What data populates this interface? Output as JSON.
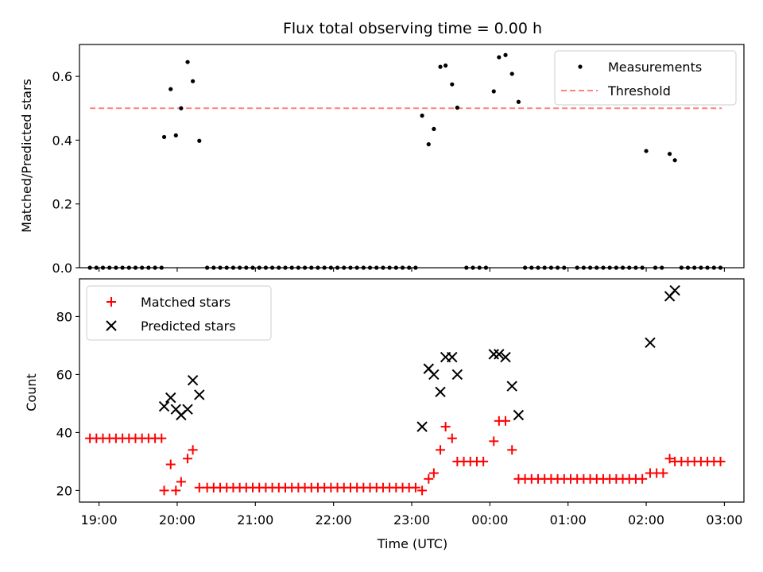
{
  "chart_data": [
    {
      "type": "scatter",
      "title": "Flux total observing time = 0.00 h",
      "xlabel": "",
      "ylabel": "Matched/Predicted stars",
      "ylim": [
        0,
        0.7
      ],
      "yticks": [
        "0.0",
        "0.2",
        "0.4",
        "0.6"
      ],
      "xlim": [
        "18:45",
        "03:15"
      ],
      "grid": false,
      "legend_position": "top-right",
      "series": [
        {
          "name": "Measurements",
          "marker": "dot",
          "color": "#000000",
          "points": [
            [
              "18:53",
              0
            ],
            [
              "18:58",
              0
            ],
            [
              "19:03",
              0
            ],
            [
              "19:08",
              0
            ],
            [
              "19:13",
              0
            ],
            [
              "19:18",
              0
            ],
            [
              "19:23",
              0
            ],
            [
              "19:28",
              0
            ],
            [
              "19:33",
              0
            ],
            [
              "19:38",
              0
            ],
            [
              "19:43",
              0
            ],
            [
              "19:48",
              0
            ],
            [
              "19:50",
              0.41
            ],
            [
              "19:55",
              0.56
            ],
            [
              "19:59",
              0.415
            ],
            [
              "20:03",
              0.5
            ],
            [
              "20:08",
              0.645
            ],
            [
              "20:12",
              0.585
            ],
            [
              "20:17",
              0.398
            ],
            [
              "20:23",
              0
            ],
            [
              "20:28",
              0
            ],
            [
              "20:33",
              0
            ],
            [
              "20:38",
              0
            ],
            [
              "20:43",
              0
            ],
            [
              "20:48",
              0
            ],
            [
              "20:53",
              0
            ],
            [
              "20:58",
              0
            ],
            [
              "21:03",
              0
            ],
            [
              "21:08",
              0
            ],
            [
              "21:13",
              0
            ],
            [
              "21:18",
              0
            ],
            [
              "21:23",
              0
            ],
            [
              "21:28",
              0
            ],
            [
              "21:33",
              0
            ],
            [
              "21:38",
              0
            ],
            [
              "21:43",
              0
            ],
            [
              "21:48",
              0
            ],
            [
              "21:53",
              0
            ],
            [
              "21:58",
              0
            ],
            [
              "22:03",
              0
            ],
            [
              "22:08",
              0
            ],
            [
              "22:13",
              0
            ],
            [
              "22:18",
              0
            ],
            [
              "22:23",
              0
            ],
            [
              "22:28",
              0
            ],
            [
              "22:33",
              0
            ],
            [
              "22:38",
              0
            ],
            [
              "22:43",
              0
            ],
            [
              "22:48",
              0
            ],
            [
              "22:53",
              0
            ],
            [
              "22:58",
              0
            ],
            [
              "23:03",
              0
            ],
            [
              "23:08",
              0.477
            ],
            [
              "23:13",
              0.387
            ],
            [
              "23:17",
              0.435
            ],
            [
              "23:22",
              0.63
            ],
            [
              "23:26",
              0.634
            ],
            [
              "23:31",
              0.575
            ],
            [
              "23:35",
              0.502
            ],
            [
              "23:42",
              0
            ],
            [
              "23:47",
              0
            ],
            [
              "23:52",
              0
            ],
            [
              "23:57",
              0
            ],
            [
              "00:03",
              0.553
            ],
            [
              "00:07",
              0.66
            ],
            [
              "00:12",
              0.667
            ],
            [
              "00:17",
              0.608
            ],
            [
              "00:22",
              0.52
            ],
            [
              "00:27",
              0
            ],
            [
              "00:32",
              0
            ],
            [
              "00:37",
              0
            ],
            [
              "00:42",
              0
            ],
            [
              "00:47",
              0
            ],
            [
              "00:52",
              0
            ],
            [
              "00:57",
              0
            ],
            [
              "01:07",
              0
            ],
            [
              "01:12",
              0
            ],
            [
              "01:17",
              0
            ],
            [
              "01:22",
              0
            ],
            [
              "01:27",
              0
            ],
            [
              "01:32",
              0
            ],
            [
              "01:37",
              0
            ],
            [
              "01:42",
              0
            ],
            [
              "01:47",
              0
            ],
            [
              "01:52",
              0
            ],
            [
              "01:57",
              0
            ],
            [
              "02:07",
              0
            ],
            [
              "02:12",
              0
            ],
            [
              "02:00",
              0.366
            ],
            [
              "02:18",
              0.357
            ],
            [
              "02:22",
              0.337
            ],
            [
              "02:27",
              0
            ],
            [
              "02:32",
              0
            ],
            [
              "02:37",
              0
            ],
            [
              "02:42",
              0
            ],
            [
              "02:47",
              0
            ],
            [
              "02:52",
              0
            ],
            [
              "02:57",
              0
            ]
          ]
        },
        {
          "name": "Threshold",
          "marker": "dashed-line",
          "color": "#ff8080",
          "points": [
            [
              "18:53",
              0.5
            ],
            [
              "02:58",
              0.5
            ]
          ]
        }
      ]
    },
    {
      "type": "scatter",
      "title": "",
      "xlabel": "Time (UTC)",
      "ylabel": "Count",
      "ylim": [
        16,
        93
      ],
      "yticks": [
        "20",
        "40",
        "60",
        "80"
      ],
      "xticks": [
        "19:00",
        "20:00",
        "21:00",
        "22:00",
        "23:00",
        "00:00",
        "01:00",
        "02:00",
        "03:00"
      ],
      "xlim": [
        "18:45",
        "03:15"
      ],
      "grid": false,
      "legend_position": "top-left",
      "series": [
        {
          "name": "Matched stars",
          "marker": "plus",
          "color": "#ff0000",
          "points": [
            [
              "18:53",
              38
            ],
            [
              "18:58",
              38
            ],
            [
              "19:03",
              38
            ],
            [
              "19:08",
              38
            ],
            [
              "19:13",
              38
            ],
            [
              "19:18",
              38
            ],
            [
              "19:23",
              38
            ],
            [
              "19:28",
              38
            ],
            [
              "19:33",
              38
            ],
            [
              "19:38",
              38
            ],
            [
              "19:43",
              38
            ],
            [
              "19:48",
              38
            ],
            [
              "19:50",
              20
            ],
            [
              "19:55",
              29
            ],
            [
              "19:59",
              20
            ],
            [
              "20:03",
              23
            ],
            [
              "20:08",
              31
            ],
            [
              "20:12",
              34
            ],
            [
              "20:17",
              21
            ],
            [
              "20:23",
              21
            ],
            [
              "20:28",
              21
            ],
            [
              "20:33",
              21
            ],
            [
              "20:38",
              21
            ],
            [
              "20:43",
              21
            ],
            [
              "20:48",
              21
            ],
            [
              "20:53",
              21
            ],
            [
              "20:58",
              21
            ],
            [
              "21:03",
              21
            ],
            [
              "21:08",
              21
            ],
            [
              "21:13",
              21
            ],
            [
              "21:18",
              21
            ],
            [
              "21:23",
              21
            ],
            [
              "21:28",
              21
            ],
            [
              "21:33",
              21
            ],
            [
              "21:38",
              21
            ],
            [
              "21:43",
              21
            ],
            [
              "21:48",
              21
            ],
            [
              "21:53",
              21
            ],
            [
              "21:58",
              21
            ],
            [
              "22:03",
              21
            ],
            [
              "22:08",
              21
            ],
            [
              "22:13",
              21
            ],
            [
              "22:18",
              21
            ],
            [
              "22:23",
              21
            ],
            [
              "22:28",
              21
            ],
            [
              "22:33",
              21
            ],
            [
              "22:38",
              21
            ],
            [
              "22:43",
              21
            ],
            [
              "22:48",
              21
            ],
            [
              "22:53",
              21
            ],
            [
              "22:58",
              21
            ],
            [
              "23:03",
              21
            ],
            [
              "23:08",
              20
            ],
            [
              "23:13",
              24
            ],
            [
              "23:17",
              26
            ],
            [
              "23:22",
              34
            ],
            [
              "23:26",
              42
            ],
            [
              "23:31",
              38
            ],
            [
              "23:35",
              30
            ],
            [
              "23:40",
              30
            ],
            [
              "23:45",
              30
            ],
            [
              "23:50",
              30
            ],
            [
              "23:55",
              30
            ],
            [
              "00:03",
              37
            ],
            [
              "00:07",
              44
            ],
            [
              "00:12",
              44
            ],
            [
              "00:17",
              34
            ],
            [
              "00:22",
              24
            ],
            [
              "00:27",
              24
            ],
            [
              "00:32",
              24
            ],
            [
              "00:37",
              24
            ],
            [
              "00:42",
              24
            ],
            [
              "00:47",
              24
            ],
            [
              "00:52",
              24
            ],
            [
              "00:57",
              24
            ],
            [
              "01:02",
              24
            ],
            [
              "01:07",
              24
            ],
            [
              "01:12",
              24
            ],
            [
              "01:17",
              24
            ],
            [
              "01:22",
              24
            ],
            [
              "01:27",
              24
            ],
            [
              "01:32",
              24
            ],
            [
              "01:37",
              24
            ],
            [
              "01:42",
              24
            ],
            [
              "01:47",
              24
            ],
            [
              "01:52",
              24
            ],
            [
              "01:57",
              24
            ],
            [
              "02:03",
              26
            ],
            [
              "02:08",
              26
            ],
            [
              "02:13",
              26
            ],
            [
              "02:18",
              31
            ],
            [
              "02:22",
              30
            ],
            [
              "02:27",
              30
            ],
            [
              "02:32",
              30
            ],
            [
              "02:37",
              30
            ],
            [
              "02:42",
              30
            ],
            [
              "02:47",
              30
            ],
            [
              "02:52",
              30
            ],
            [
              "02:57",
              30
            ]
          ]
        },
        {
          "name": "Predicted stars",
          "marker": "x",
          "color": "#000000",
          "points": [
            [
              "19:50",
              49
            ],
            [
              "19:55",
              52
            ],
            [
              "19:59",
              48
            ],
            [
              "20:03",
              46
            ],
            [
              "20:08",
              48
            ],
            [
              "20:12",
              58
            ],
            [
              "20:17",
              53
            ],
            [
              "23:08",
              42
            ],
            [
              "23:13",
              62
            ],
            [
              "23:17",
              60
            ],
            [
              "23:22",
              54
            ],
            [
              "23:26",
              66
            ],
            [
              "23:31",
              66
            ],
            [
              "23:35",
              60
            ],
            [
              "00:03",
              67
            ],
            [
              "00:07",
              67
            ],
            [
              "00:12",
              66
            ],
            [
              "00:17",
              56
            ],
            [
              "00:22",
              46
            ],
            [
              "02:03",
              71
            ],
            [
              "02:18",
              87
            ],
            [
              "02:22",
              89
            ]
          ]
        }
      ]
    }
  ]
}
